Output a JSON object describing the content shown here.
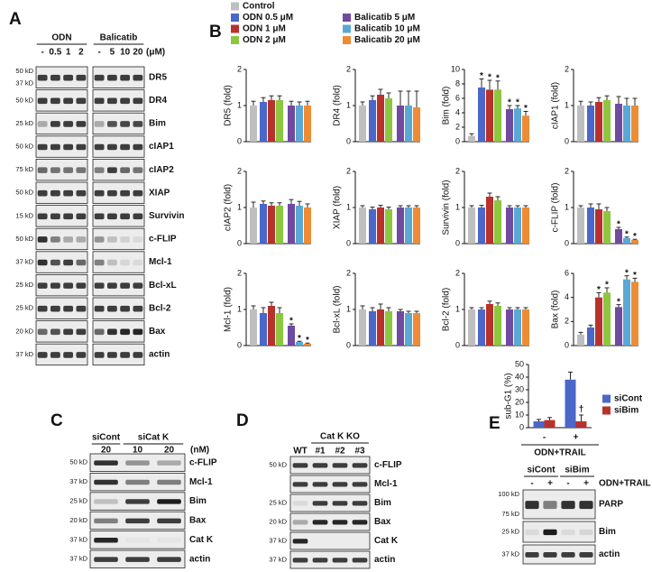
{
  "panel_labels": [
    "A",
    "B",
    "C",
    "D",
    "E"
  ],
  "blot_a": {
    "header_groups": [
      {
        "name": "ODN",
        "lanes": [
          "-",
          "0.5",
          "1",
          "2"
        ]
      },
      {
        "name": "Balicatib",
        "lanes": [
          "-",
          "5",
          "10",
          "20"
        ]
      }
    ],
    "unit": "(μM)",
    "rows": [
      {
        "label": "DR5",
        "markers": [
          "50 kD",
          "37 kD"
        ]
      },
      {
        "label": "DR4",
        "markers": [
          "50 kD"
        ]
      },
      {
        "label": "Bim",
        "markers": [
          "25 kD"
        ]
      },
      {
        "label": "cIAP1",
        "markers": [
          "50 kD"
        ]
      },
      {
        "label": "cIAP2",
        "markers": [
          "75 kD"
        ]
      },
      {
        "label": "XIAP",
        "markers": [
          "50 kD"
        ]
      },
      {
        "label": "Survivin",
        "markers": [
          "15 kD"
        ]
      },
      {
        "label": "c-FLIP",
        "markers": [
          "50 kD"
        ]
      },
      {
        "label": "Mcl-1",
        "markers": [
          "37 kD"
        ]
      },
      {
        "label": "Bcl-xL",
        "markers": [
          "25 kD"
        ]
      },
      {
        "label": "Bcl-2",
        "markers": [
          "25 kD"
        ]
      },
      {
        "label": "Bax",
        "markers": [
          "20 kD"
        ]
      },
      {
        "label": "actin",
        "markers": [
          "37 kD"
        ]
      }
    ]
  },
  "blot_c": {
    "header_groups": [
      {
        "name": "siCont",
        "lanes": [
          "20"
        ]
      },
      {
        "name": "siCat K",
        "lanes": [
          "10",
          "20"
        ]
      }
    ],
    "unit": "(nM)",
    "rows": [
      {
        "label": "c-FLIP",
        "markers": [
          "50 kD"
        ]
      },
      {
        "label": "Mcl-1",
        "markers": [
          "37 kD"
        ]
      },
      {
        "label": "Bim",
        "markers": [
          "25 kD"
        ]
      },
      {
        "label": "Bax",
        "markers": [
          "20 kD"
        ]
      },
      {
        "label": "Cat K",
        "markers": [
          "37 kD"
        ]
      },
      {
        "label": "actin",
        "markers": [
          "37 kD"
        ]
      }
    ]
  },
  "blot_d": {
    "header_groups": [
      {
        "lanes": [
          "WT"
        ]
      },
      {
        "name": "Cat K KO",
        "lanes": [
          "#1",
          "#2",
          "#3"
        ]
      }
    ],
    "rows": [
      {
        "label": "c-FLIP",
        "markers": [
          "50 kD"
        ]
      },
      {
        "label": "Mcl-1",
        "markers": []
      },
      {
        "label": "Bim",
        "markers": [
          "25 kD"
        ]
      },
      {
        "label": "Bax",
        "markers": [
          "20 kD"
        ]
      },
      {
        "label": "Cat K",
        "markers": [
          "37 kD"
        ]
      },
      {
        "label": "actin",
        "markers": [
          "37 kD"
        ]
      }
    ]
  },
  "blot_e": {
    "header_groups": [
      {
        "name": "siCont",
        "lanes": [
          "-",
          "+"
        ]
      },
      {
        "name": "siBim",
        "lanes": [
          "-",
          "+"
        ]
      }
    ],
    "unit": "ODN+TRAIL",
    "rows": [
      {
        "label": "PARP",
        "markers": [
          "100 kD",
          "75 kD"
        ]
      },
      {
        "label": "Bim",
        "markers": [
          "25 kD"
        ]
      },
      {
        "label": "actin",
        "markers": [
          "37 kD"
        ]
      }
    ]
  },
  "b_legend": {
    "names": [
      "Control",
      "ODN 0.5 μM",
      "ODN 1 μM",
      "ODN 2 μM",
      "Balicatib 5 μM",
      "Balicatib 10 μM",
      "Balicatib 20 μM"
    ],
    "colors": [
      "#bfbfbf",
      "#4a67c9",
      "#b8312b",
      "#8dc63f",
      "#6f4aa0",
      "#5aa8d4",
      "#ee8c35"
    ]
  },
  "chart_data": [
    {
      "type": "bar",
      "ylabel": "DR5 (fold)",
      "ylim": [
        0,
        2
      ],
      "yticks": [
        0,
        1,
        2
      ],
      "values": [
        1,
        1.1,
        1.15,
        1.15,
        1.0,
        1.0,
        1.0
      ],
      "errors": [
        0.12,
        0.12,
        0.12,
        0.12,
        0.12,
        0.1,
        0.12
      ],
      "annotations": []
    },
    {
      "type": "bar",
      "ylabel": "DR4 (fold)",
      "ylim": [
        0,
        2
      ],
      "yticks": [
        0,
        1,
        2
      ],
      "values": [
        1,
        1.15,
        1.3,
        1.2,
        1.0,
        1.0,
        0.95
      ],
      "errors": [
        0.1,
        0.12,
        0.15,
        0.15,
        0.4,
        0.4,
        0.45
      ],
      "annotations": []
    },
    {
      "type": "bar",
      "ylabel": "Bim (fold)",
      "ylim": [
        0,
        10
      ],
      "yticks": [
        0,
        2,
        4,
        6,
        8,
        10
      ],
      "values": [
        0.8,
        7.5,
        7.2,
        7.2,
        4.5,
        4.6,
        3.6
      ],
      "errors": [
        0.3,
        1.2,
        1.3,
        1.2,
        0.5,
        0.4,
        0.6
      ],
      "annotations": [
        {
          "index": 1,
          "text": "*"
        },
        {
          "index": 2,
          "text": "*"
        },
        {
          "index": 3,
          "text": "*"
        },
        {
          "index": 4,
          "text": "*"
        },
        {
          "index": 5,
          "text": "*"
        },
        {
          "index": 6,
          "text": "*"
        }
      ]
    },
    {
      "type": "bar",
      "ylabel": "cIAP1 (fold)",
      "ylim": [
        0,
        2
      ],
      "yticks": [
        0,
        1,
        2
      ],
      "values": [
        1,
        1.0,
        1.1,
        1.15,
        1.05,
        1.0,
        1.0
      ],
      "errors": [
        0.12,
        0.1,
        0.12,
        0.12,
        0.2,
        0.2,
        0.2
      ],
      "annotations": []
    },
    {
      "type": "bar",
      "ylabel": "cIAP2 (fold)",
      "ylim": [
        0,
        2
      ],
      "yticks": [
        0,
        1,
        2
      ],
      "values": [
        1,
        1.1,
        1.05,
        1.05,
        1.1,
        1.05,
        1.0
      ],
      "errors": [
        0.15,
        0.08,
        0.08,
        0.08,
        0.12,
        0.12,
        0.1
      ],
      "annotations": []
    },
    {
      "type": "bar",
      "ylabel": "XIAP (fold)",
      "ylim": [
        0,
        2
      ],
      "yticks": [
        0,
        1,
        2
      ],
      "values": [
        1,
        0.95,
        1.0,
        0.95,
        1.0,
        1.0,
        1.0
      ],
      "errors": [
        0.05,
        0.06,
        0.06,
        0.06,
        0.05,
        0.05,
        0.05
      ],
      "annotations": []
    },
    {
      "type": "bar",
      "ylabel": "Survivin (fold)",
      "ylim": [
        0,
        2
      ],
      "yticks": [
        0,
        1,
        2
      ],
      "values": [
        1,
        1.0,
        1.3,
        1.2,
        1.0,
        1.0,
        1.0
      ],
      "errors": [
        0.05,
        0.06,
        0.1,
        0.1,
        0.05,
        0.05,
        0.05
      ],
      "annotations": []
    },
    {
      "type": "bar",
      "ylabel": "c-FLIP (fold)",
      "ylim": [
        0,
        2
      ],
      "yticks": [
        0,
        1,
        2
      ],
      "values": [
        1,
        1.0,
        0.95,
        0.9,
        0.4,
        0.15,
        0.1
      ],
      "errors": [
        0.05,
        0.1,
        0.15,
        0.1,
        0.05,
        0.03,
        0.02
      ],
      "annotations": [
        {
          "index": 4,
          "text": "*"
        },
        {
          "index": 5,
          "text": "*"
        },
        {
          "index": 6,
          "text": "*"
        }
      ]
    },
    {
      "type": "bar",
      "ylabel": "Mcl-1 (fold)",
      "ylim": [
        0,
        2
      ],
      "yticks": [
        0,
        1,
        2
      ],
      "values": [
        1,
        0.9,
        1.1,
        0.9,
        0.55,
        0.1,
        0.05
      ],
      "errors": [
        0.1,
        0.15,
        0.1,
        0.15,
        0.05,
        0.02,
        0.02
      ],
      "annotations": [
        {
          "index": 4,
          "text": "*"
        },
        {
          "index": 5,
          "text": "*"
        },
        {
          "index": 6,
          "text": "*"
        }
      ]
    },
    {
      "type": "bar",
      "ylabel": "Bcl-xL (fold)",
      "ylim": [
        0,
        2
      ],
      "yticks": [
        0,
        1,
        2
      ],
      "values": [
        1,
        0.95,
        1.0,
        0.95,
        0.95,
        0.9,
        0.9
      ],
      "errors": [
        0.1,
        0.1,
        0.15,
        0.1,
        0.05,
        0.05,
        0.05
      ],
      "annotations": []
    },
    {
      "type": "bar",
      "ylabel": "Bcl-2 (fold)",
      "ylim": [
        0,
        2
      ],
      "yticks": [
        0,
        1,
        2
      ],
      "values": [
        1,
        1.0,
        1.15,
        1.1,
        1.0,
        1.0,
        1.0
      ],
      "errors": [
        0.05,
        0.05,
        0.08,
        0.08,
        0.05,
        0.05,
        0.05
      ],
      "annotations": []
    },
    {
      "type": "bar",
      "ylabel": "Bax (fold)",
      "ylim": [
        0,
        6
      ],
      "yticks": [
        0,
        2,
        4,
        6
      ],
      "values": [
        0.9,
        1.5,
        4.0,
        4.4,
        3.2,
        5.5,
        5.3
      ],
      "errors": [
        0.2,
        0.2,
        0.4,
        0.4,
        0.2,
        0.3,
        0.3
      ],
      "annotations": [
        {
          "index": 2,
          "text": "*"
        },
        {
          "index": 3,
          "text": "*"
        },
        {
          "index": 4,
          "text": "*"
        },
        {
          "index": 5,
          "text": "*"
        },
        {
          "index": 6,
          "text": "*"
        }
      ]
    },
    {
      "type": "bar",
      "ylabel": "sub-G1 (%)",
      "xlabel": "ODN+TRAIL",
      "categories": [
        "-",
        "+"
      ],
      "ylim": [
        0,
        50
      ],
      "yticks": [
        0,
        10,
        20,
        30,
        40,
        50
      ],
      "series": [
        {
          "name": "siCont",
          "color": "#4a67c9",
          "values": [
            5,
            38
          ],
          "errors": [
            1.5,
            6
          ]
        },
        {
          "name": "siBim",
          "color": "#b8312b",
          "values": [
            6,
            5
          ],
          "errors": [
            2,
            5
          ]
        }
      ],
      "annotations": [
        {
          "series": 1,
          "index": 1,
          "text": "†"
        }
      ],
      "legend": "upper right"
    }
  ]
}
